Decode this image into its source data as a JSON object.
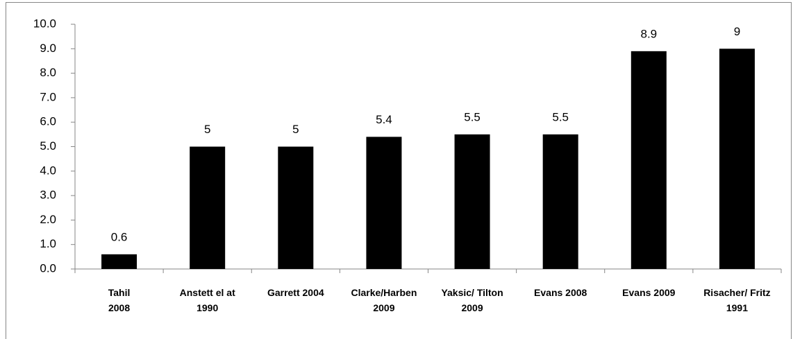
{
  "chart_data": {
    "type": "bar",
    "categories": [
      "Tahil\n2008",
      "Anstett el at\n1990",
      "Garrett 2004",
      "Clarke/Harben\n2009",
      "Yaksic/ Tilton\n2009",
      "Evans 2008",
      "Evans 2009",
      "Risacher/ Fritz\n1991"
    ],
    "values": [
      0.6,
      5,
      5,
      5.4,
      5.5,
      5.5,
      8.9,
      9
    ],
    "color": "#000000",
    "ylim": [
      0,
      10
    ],
    "yticks": [
      {
        "value": 0,
        "label": "0.0"
      },
      {
        "value": 1,
        "label": "1.0"
      },
      {
        "value": 2,
        "label": "2.0"
      },
      {
        "value": 3,
        "label": "3.0"
      },
      {
        "value": 4,
        "label": "4.0"
      },
      {
        "value": 5,
        "label": "5.0"
      },
      {
        "value": 6,
        "label": "6.0"
      },
      {
        "value": 7,
        "label": "7.0"
      },
      {
        "value": 8,
        "label": "8.0"
      },
      {
        "value": 9,
        "label": "9.0"
      },
      {
        "value": 10,
        "label": "10.0"
      }
    ],
    "grid": false
  }
}
